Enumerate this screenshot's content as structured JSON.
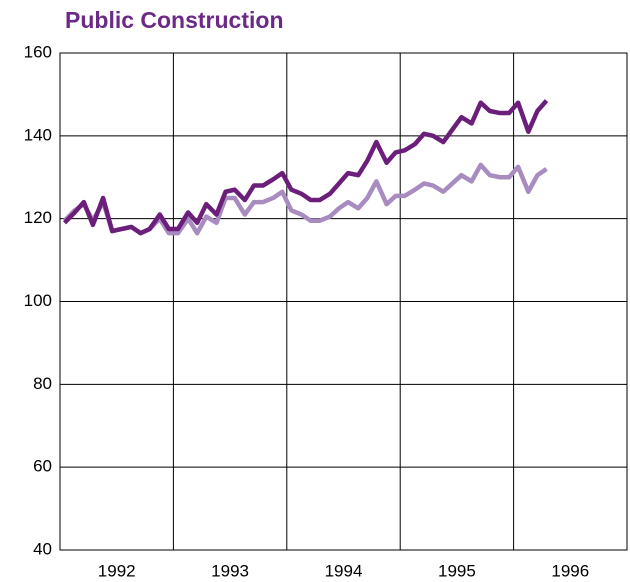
{
  "chart_data": {
    "type": "line",
    "title": "Public Construction",
    "x": [
      1992.04,
      1992.13,
      1992.21,
      1992.29,
      1992.38,
      1992.46,
      1992.54,
      1992.63,
      1992.71,
      1992.79,
      1992.88,
      1992.96,
      1993.04,
      1993.13,
      1993.21,
      1993.29,
      1993.38,
      1993.46,
      1993.54,
      1993.63,
      1993.71,
      1993.79,
      1993.88,
      1993.96,
      1994.04,
      1994.13,
      1994.21,
      1994.29,
      1994.38,
      1994.46,
      1994.54,
      1994.63,
      1994.71,
      1994.79,
      1994.88,
      1994.96,
      1995.04,
      1995.13,
      1995.21,
      1995.29,
      1995.38,
      1995.46,
      1995.54,
      1995.63,
      1995.71,
      1995.79,
      1995.88,
      1995.96,
      1996.04,
      1996.13,
      1996.21,
      1996.29
    ],
    "series": [
      {
        "color": "#a88bbf",
        "values": [
          119.5,
          122,
          123.5,
          119.5,
          124,
          117,
          117.5,
          118,
          116.5,
          117.5,
          120,
          116.5,
          116.5,
          120,
          116.5,
          120.5,
          119,
          125,
          125,
          121,
          124,
          124,
          125,
          126.5,
          122,
          121,
          119.5,
          119.5,
          120.5,
          122.5,
          124,
          122.5,
          125,
          129,
          123.5,
          125.5,
          125.5,
          127,
          128.5,
          128,
          126.5,
          128.5,
          130.5,
          129,
          133,
          130.5,
          130,
          130,
          132.5,
          126.5,
          130.5,
          132
        ]
      },
      {
        "color": "#6b1f7b",
        "values": [
          119,
          121.5,
          124,
          118.5,
          125,
          117,
          117.5,
          118,
          116.5,
          117.5,
          121,
          117.5,
          117.5,
          121.5,
          119,
          123.5,
          121,
          126.5,
          127,
          124.5,
          128,
          128,
          129.5,
          131,
          127,
          126,
          124.5,
          124.5,
          126,
          128.5,
          131,
          130.5,
          134,
          138.5,
          133.5,
          136,
          136.5,
          138,
          140.5,
          140,
          138.5,
          141.5,
          144.5,
          143,
          148,
          146,
          145.5,
          145.5,
          148,
          141,
          146,
          148.5
        ]
      }
    ],
    "xlim": [
      1992,
      1997
    ],
    "xticks": [
      {
        "value": 1992.5,
        "label": "1992"
      },
      {
        "value": 1993.5,
        "label": "1993"
      },
      {
        "value": 1994.5,
        "label": "1994"
      },
      {
        "value": 1995.5,
        "label": "1995"
      },
      {
        "value": 1996.5,
        "label": "1996"
      }
    ],
    "xgrid": [
      1993,
      1994,
      1995,
      1996
    ],
    "ylim": [
      40,
      160
    ],
    "yticks": [
      40,
      60,
      80,
      100,
      120,
      140,
      160
    ],
    "grid": true
  }
}
